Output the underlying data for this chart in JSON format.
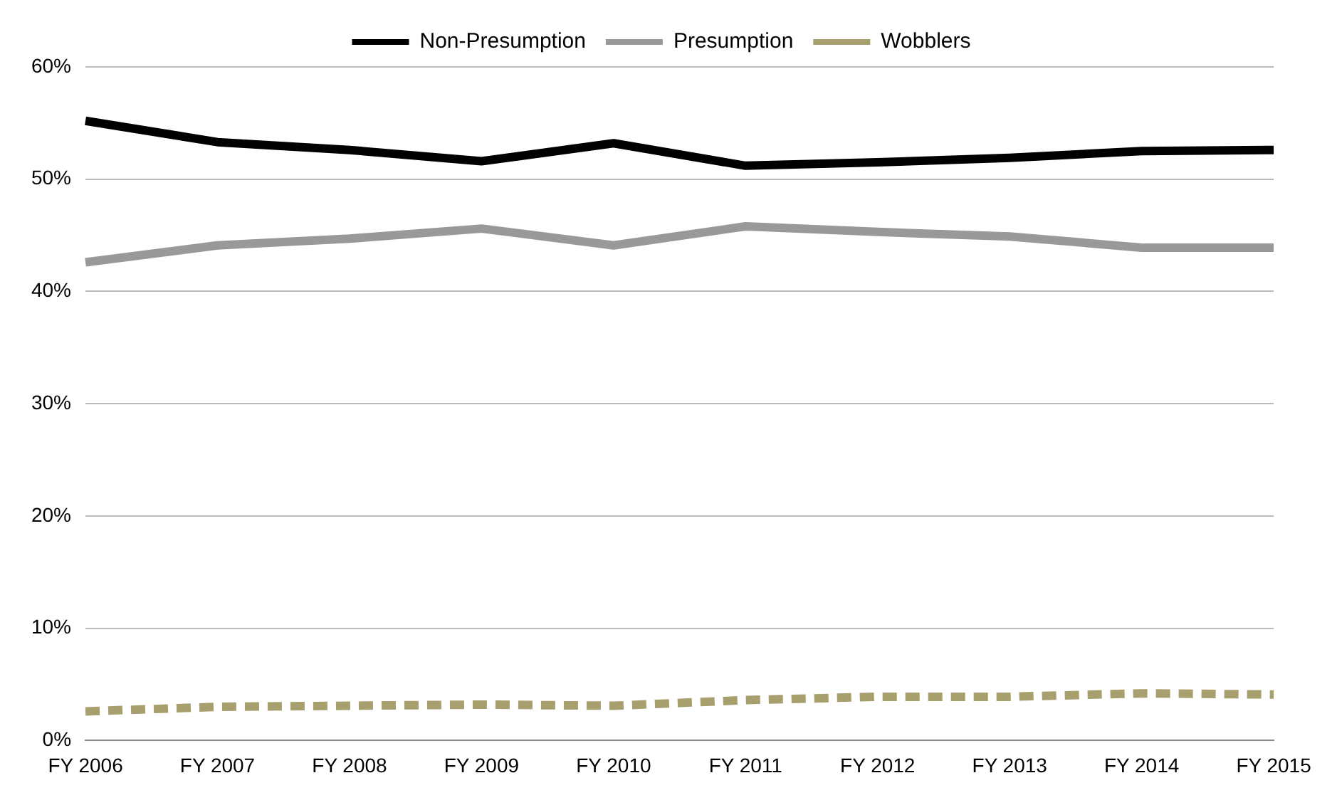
{
  "chart_data": {
    "type": "line",
    "categories": [
      "FY 2006",
      "FY 2007",
      "FY 2008",
      "FY 2009",
      "FY 2010",
      "FY 2011",
      "FY 2012",
      "FY 2013",
      "FY 2014",
      "FY 2015"
    ],
    "series": [
      {
        "name": "Non-Presumption",
        "color": "#000000",
        "values": [
          55.2,
          53.3,
          52.6,
          51.6,
          53.2,
          51.2,
          51.5,
          51.9,
          52.5,
          52.6
        ]
      },
      {
        "name": "Presumption",
        "color": "#999999",
        "values": [
          42.6,
          44.1,
          44.7,
          45.6,
          44.1,
          45.8,
          45.3,
          44.9,
          43.9,
          43.9
        ]
      },
      {
        "name": "Wobblers",
        "color": "#a89f6f",
        "line_style": "dashed",
        "values": [
          2.6,
          3.0,
          3.1,
          3.2,
          3.1,
          3.6,
          3.9,
          3.9,
          4.2,
          4.1
        ]
      }
    ],
    "ylim": [
      0,
      60
    ],
    "yticks": [
      {
        "value": 0,
        "label": "0%"
      },
      {
        "value": 10,
        "label": "10%"
      },
      {
        "value": 20,
        "label": "20%"
      },
      {
        "value": 30,
        "label": "30%"
      },
      {
        "value": 40,
        "label": "40%"
      },
      {
        "value": 50,
        "label": "50%"
      },
      {
        "value": 60,
        "label": "60%"
      }
    ],
    "grid": "y",
    "legend": "top",
    "marker": "none",
    "line_style": "solid"
  }
}
